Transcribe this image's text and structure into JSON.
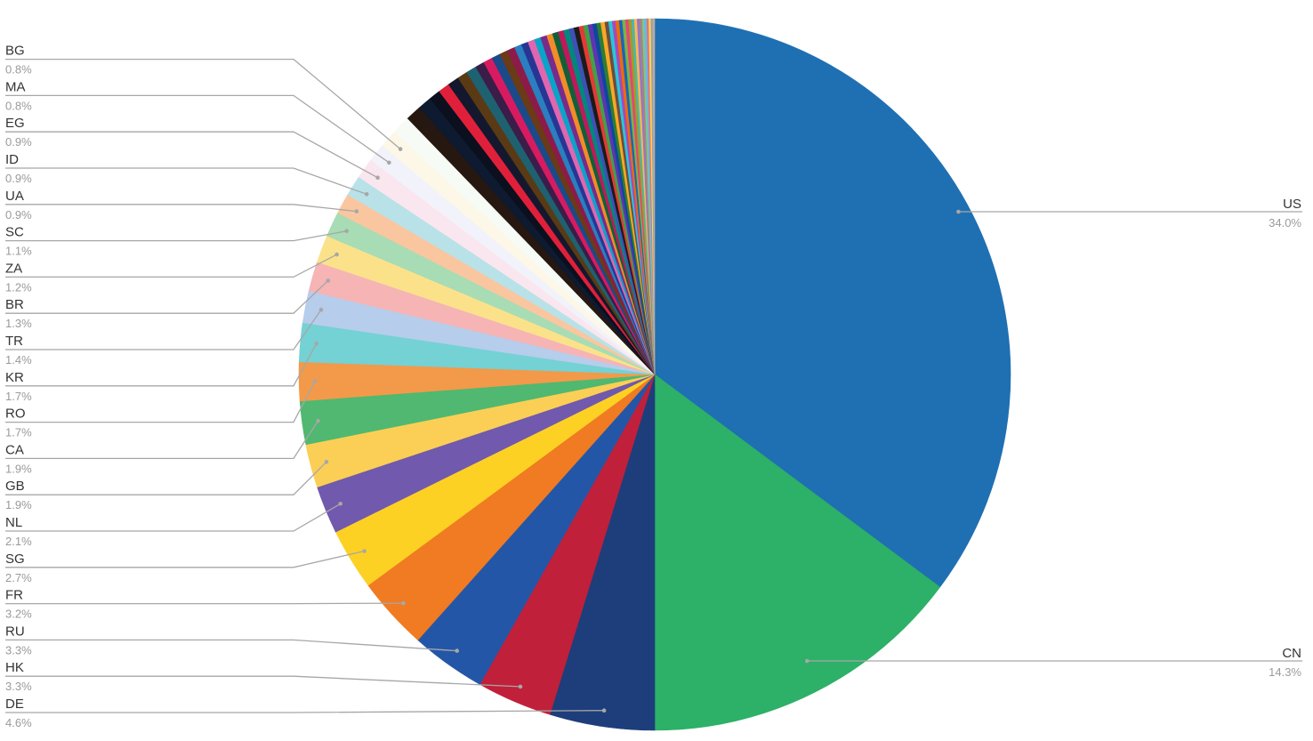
{
  "chart_data": {
    "type": "pie",
    "title": "",
    "labeled": [
      {
        "name": "US",
        "value": 34.0,
        "label": "34.0%",
        "color": "#1f6fb3"
      },
      {
        "name": "CN",
        "value": 14.3,
        "label": "14.3%",
        "color": "#2db067"
      },
      {
        "name": "DE",
        "value": 4.6,
        "label": "4.6%",
        "color": "#1d3e7b"
      },
      {
        "name": "HK",
        "value": 3.3,
        "label": "3.3%",
        "color": "#c0203a"
      },
      {
        "name": "RU",
        "value": 3.3,
        "label": "3.3%",
        "color": "#2456a8"
      },
      {
        "name": "FR",
        "value": 3.2,
        "label": "3.2%",
        "color": "#f07b22"
      },
      {
        "name": "SG",
        "value": 2.7,
        "label": "2.7%",
        "color": "#fdd124"
      },
      {
        "name": "NL",
        "value": 2.1,
        "label": "2.1%",
        "color": "#7159ad"
      },
      {
        "name": "GB",
        "value": 1.9,
        "label": "1.9%",
        "color": "#fbcf55"
      },
      {
        "name": "CA",
        "value": 1.9,
        "label": "1.9%",
        "color": "#50b870"
      },
      {
        "name": "RO",
        "value": 1.7,
        "label": "1.7%",
        "color": "#f29a4a"
      },
      {
        "name": "KR",
        "value": 1.7,
        "label": "1.7%",
        "color": "#74d1d4"
      },
      {
        "name": "TR",
        "value": 1.4,
        "label": "1.4%",
        "color": "#b6cdec"
      },
      {
        "name": "BR",
        "value": 1.3,
        "label": "1.3%",
        "color": "#f6b4b5"
      },
      {
        "name": "ZA",
        "value": 1.2,
        "label": "1.2%",
        "color": "#fbe28a"
      },
      {
        "name": "SC",
        "value": 1.1,
        "label": "1.1%",
        "color": "#a8dcb4"
      },
      {
        "name": "UA",
        "value": 0.9,
        "label": "0.9%",
        "color": "#f9c6a0"
      },
      {
        "name": "ID",
        "value": 0.9,
        "label": "0.9%",
        "color": "#b8e2e8"
      },
      {
        "name": "EG",
        "value": 0.9,
        "label": "0.9%",
        "color": "#fae6ee"
      },
      {
        "name": "MA",
        "value": 0.8,
        "label": "0.8%",
        "color": "#f2f2fb"
      },
      {
        "name": "BG",
        "value": 0.8,
        "label": "0.8%",
        "color": "#fdf7e8"
      }
    ],
    "unlabeled_slices": [
      {
        "value": 0.8,
        "color": "#f6fbf6"
      },
      {
        "value": 0.7,
        "color": "#261710"
      },
      {
        "value": 0.6,
        "color": "#0d1a30"
      },
      {
        "value": 0.5,
        "color": "#0b0f1e"
      },
      {
        "value": 0.5,
        "color": "#e0203a"
      },
      {
        "value": 0.5,
        "color": "#14182e"
      },
      {
        "value": 0.45,
        "color": "#5a3a14"
      },
      {
        "value": 0.45,
        "color": "#1e6272"
      },
      {
        "value": 0.4,
        "color": "#3a1d48"
      },
      {
        "value": 0.4,
        "color": "#d81b60"
      },
      {
        "value": 0.38,
        "color": "#1a4a8a"
      },
      {
        "value": 0.36,
        "color": "#6a3b16"
      },
      {
        "value": 0.34,
        "color": "#8e1a4a"
      },
      {
        "value": 0.32,
        "color": "#2a7fc0"
      },
      {
        "value": 0.3,
        "color": "#283593"
      },
      {
        "value": 0.3,
        "color": "#e066b0"
      },
      {
        "value": 0.28,
        "color": "#0aa4c8"
      },
      {
        "value": 0.28,
        "color": "#7a2a8a"
      },
      {
        "value": 0.26,
        "color": "#f28c28"
      },
      {
        "value": 0.26,
        "color": "#11603a"
      },
      {
        "value": 0.24,
        "color": "#c2185b"
      },
      {
        "value": 0.24,
        "color": "#00897b"
      },
      {
        "value": 0.22,
        "color": "#3f51b5"
      },
      {
        "value": 0.22,
        "color": "#1b1b1b"
      },
      {
        "value": 0.2,
        "color": "#e53935"
      },
      {
        "value": 0.2,
        "color": "#43a047"
      },
      {
        "value": 0.2,
        "color": "#5e35b1"
      },
      {
        "value": 0.18,
        "color": "#0d47a1"
      },
      {
        "value": 0.18,
        "color": "#2e7d32"
      },
      {
        "value": 0.18,
        "color": "#f9a825"
      },
      {
        "value": 0.16,
        "color": "#6d4c41"
      },
      {
        "value": 0.16,
        "color": "#26c6da"
      },
      {
        "value": 0.15,
        "color": "#ab47bc"
      },
      {
        "value": 0.15,
        "color": "#ef6c00"
      },
      {
        "value": 0.14,
        "color": "#1565c0"
      },
      {
        "value": 0.14,
        "color": "#7cb342"
      },
      {
        "value": 0.13,
        "color": "#ec407a"
      },
      {
        "value": 0.13,
        "color": "#9e9d24"
      },
      {
        "value": 0.12,
        "color": "#4db6ac"
      },
      {
        "value": 0.12,
        "color": "#ffb74d"
      },
      {
        "value": 0.11,
        "color": "#9575cd"
      },
      {
        "value": 0.11,
        "color": "#a1887f"
      },
      {
        "value": 0.1,
        "color": "#81c784"
      },
      {
        "value": 0.1,
        "color": "#64b5f6"
      },
      {
        "value": 0.09,
        "color": "#e57373"
      },
      {
        "value": 0.09,
        "color": "#ffd54f"
      },
      {
        "value": 0.08,
        "color": "#90a4ae"
      },
      {
        "value": 0.08,
        "color": "#bcaaa4"
      }
    ]
  }
}
